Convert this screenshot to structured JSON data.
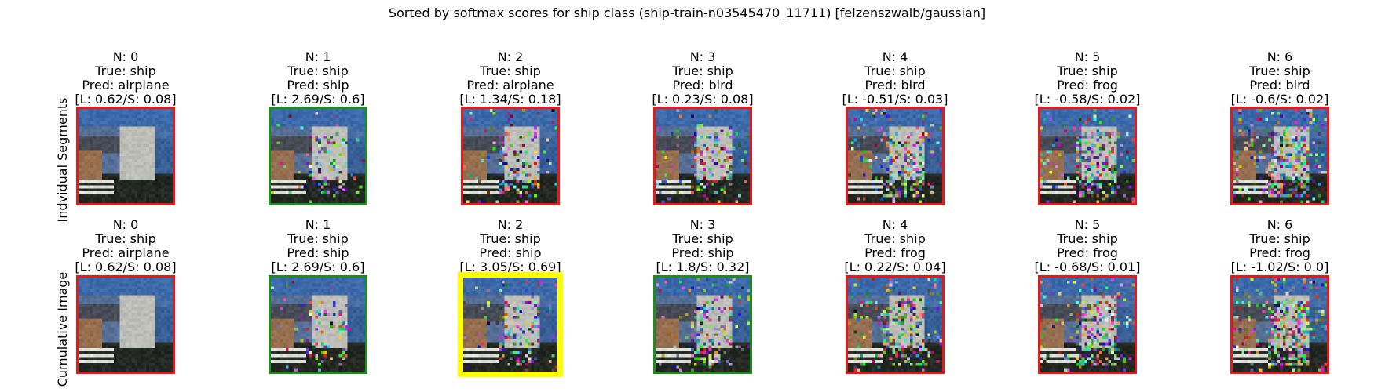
{
  "title": "Sorted by softmax scores for ship class (ship-train-n03545470_11711) [felzenszwalb/gaussian]",
  "colors": {
    "wrong": "#e31a1c",
    "correct": "#1f8b1f",
    "best": "#ffff00"
  },
  "rows": [
    {
      "label": "Indvidual Segments",
      "panels": [
        {
          "n": "N: 0",
          "true": "True: ship",
          "pred": "Pred: airplane",
          "scores": "[L: 0.62/S: 0.08]",
          "status": "wrong",
          "noise": 0
        },
        {
          "n": "N: 1",
          "true": "True: ship",
          "pred": "Pred: ship",
          "scores": "[L: 2.69/S: 0.6]",
          "status": "correct",
          "noise": 1
        },
        {
          "n": "N: 2",
          "true": "True: ship",
          "pred": "Pred: airplane",
          "scores": "[L: 1.34/S: 0.18]",
          "status": "wrong",
          "noise": 2
        },
        {
          "n": "N: 3",
          "true": "True: ship",
          "pred": "Pred: bird",
          "scores": "[L: 0.23/S: 0.08]",
          "status": "wrong",
          "noise": 3
        },
        {
          "n": "N: 4",
          "true": "True: ship",
          "pred": "Pred: bird",
          "scores": "[L: -0.51/S: 0.03]",
          "status": "wrong",
          "noise": 4
        },
        {
          "n": "N: 5",
          "true": "True: ship",
          "pred": "Pred: frog",
          "scores": "[L: -0.58/S: 0.02]",
          "status": "wrong",
          "noise": 5
        },
        {
          "n": "N: 6",
          "true": "True: ship",
          "pred": "Pred: bird",
          "scores": "[L: -0.6/S: 0.02]",
          "status": "wrong",
          "noise": 6
        }
      ]
    },
    {
      "label": "Cumulative Image",
      "panels": [
        {
          "n": "N: 0",
          "true": "True: ship",
          "pred": "Pred: airplane",
          "scores": "[L: 0.62/S: 0.08]",
          "status": "wrong",
          "noise": 0
        },
        {
          "n": "N: 1",
          "true": "True: ship",
          "pred": "Pred: ship",
          "scores": "[L: 2.69/S: 0.6]",
          "status": "correct",
          "noise": 1
        },
        {
          "n": "N: 2",
          "true": "True: ship",
          "pred": "Pred: ship",
          "scores": "[L: 3.05/S: 0.69]",
          "status": "best",
          "noise": 2
        },
        {
          "n": "N: 3",
          "true": "True: ship",
          "pred": "Pred: ship",
          "scores": "[L: 1.8/S: 0.32]",
          "status": "correct",
          "noise": 3
        },
        {
          "n": "N: 4",
          "true": "True: ship",
          "pred": "Pred: frog",
          "scores": "[L: 0.22/S: 0.04]",
          "status": "wrong",
          "noise": 4
        },
        {
          "n": "N: 5",
          "true": "True: ship",
          "pred": "Pred: frog",
          "scores": "[L: -0.68/S: 0.01]",
          "status": "wrong",
          "noise": 5
        },
        {
          "n": "N: 6",
          "true": "True: ship",
          "pred": "Pred: frog",
          "scores": "[L: -1.02/S: 0.0]",
          "status": "wrong",
          "noise": 6
        }
      ]
    }
  ]
}
